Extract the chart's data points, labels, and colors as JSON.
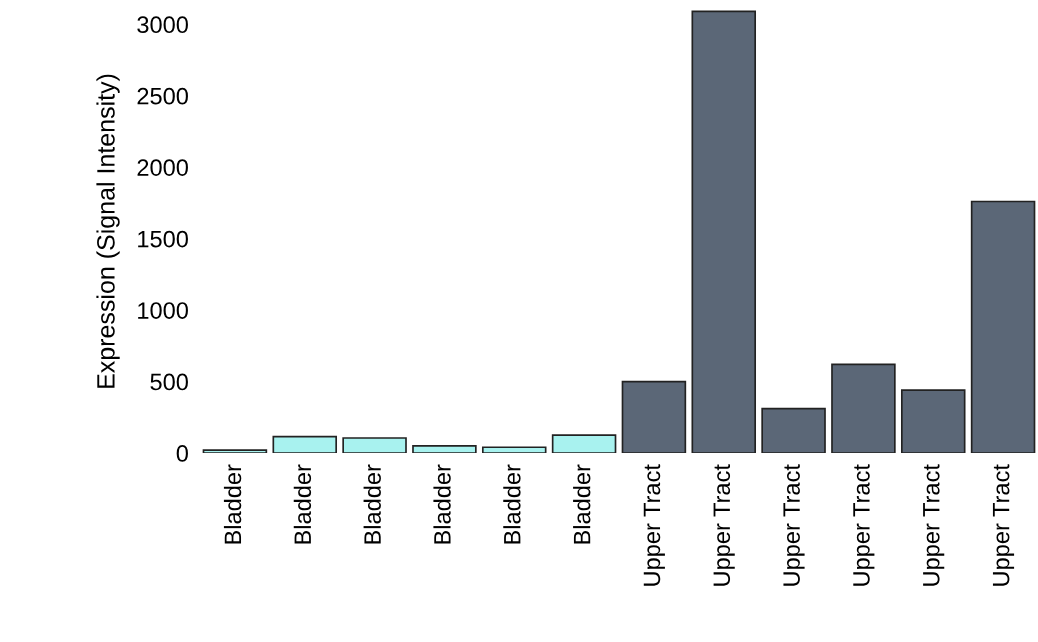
{
  "chart_data": {
    "type": "bar",
    "ylabel": "Expression (Signal Intensity)",
    "categories": [
      "Bladder",
      "Bladder",
      "Bladder",
      "Bladder",
      "Bladder",
      "Bladder",
      "Upper Tract",
      "Upper Tract",
      "Upper Tract",
      "Upper Tract",
      "Upper Tract",
      "Upper Tract"
    ],
    "values": [
      20,
      115,
      105,
      50,
      40,
      125,
      500,
      3090,
      310,
      620,
      440,
      1760
    ],
    "colors": [
      "#a8f2ef",
      "#a8f2ef",
      "#a8f2ef",
      "#a8f2ef",
      "#a8f2ef",
      "#a8f2ef",
      "#5b6777",
      "#5b6777",
      "#5b6777",
      "#5b6777",
      "#5b6777",
      "#5b6777"
    ],
    "ylim": [
      0,
      3100
    ],
    "yticks": [
      0,
      500,
      1000,
      1500,
      2000,
      2500,
      3000
    ],
    "grid": false,
    "legend": false
  }
}
